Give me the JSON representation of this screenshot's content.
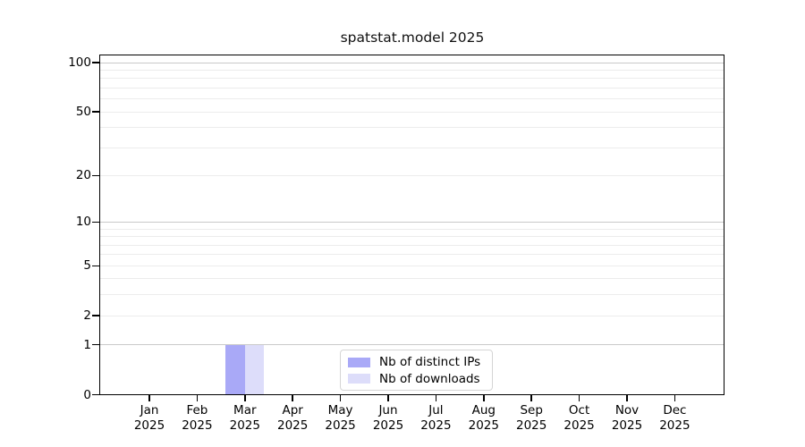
{
  "chart_data": {
    "type": "bar",
    "title": "spatstat.model 2025",
    "x_categories": [
      "Jan",
      "Feb",
      "Mar",
      "Apr",
      "May",
      "Jun",
      "Jul",
      "Aug",
      "Sep",
      "Oct",
      "Nov",
      "Dec"
    ],
    "x_year": "2025",
    "series": [
      {
        "name": "Nb of distinct IPs",
        "color": "#a9a9f7",
        "values": [
          0,
          0,
          1,
          0,
          0,
          0,
          0,
          0,
          0,
          0,
          0,
          0
        ]
      },
      {
        "name": "Nb of downloads",
        "color": "#ddddfa",
        "values": [
          0,
          0,
          1,
          0,
          0,
          0,
          0,
          0,
          0,
          0,
          0,
          0
        ]
      }
    ],
    "y_axis": {
      "scale": "log1p",
      "ticks": [
        0,
        1,
        2,
        5,
        10,
        20,
        50,
        100
      ],
      "limit": [
        0,
        100
      ]
    },
    "grid": {
      "major_values": [
        1,
        10,
        100
      ],
      "minor_values": [
        2,
        3,
        4,
        5,
        6,
        7,
        8,
        9,
        20,
        30,
        40,
        50,
        60,
        70,
        80,
        90
      ],
      "major_color": "#c9c9c9",
      "minor_color": "#ececec"
    },
    "legend_position": "bottom-center"
  }
}
